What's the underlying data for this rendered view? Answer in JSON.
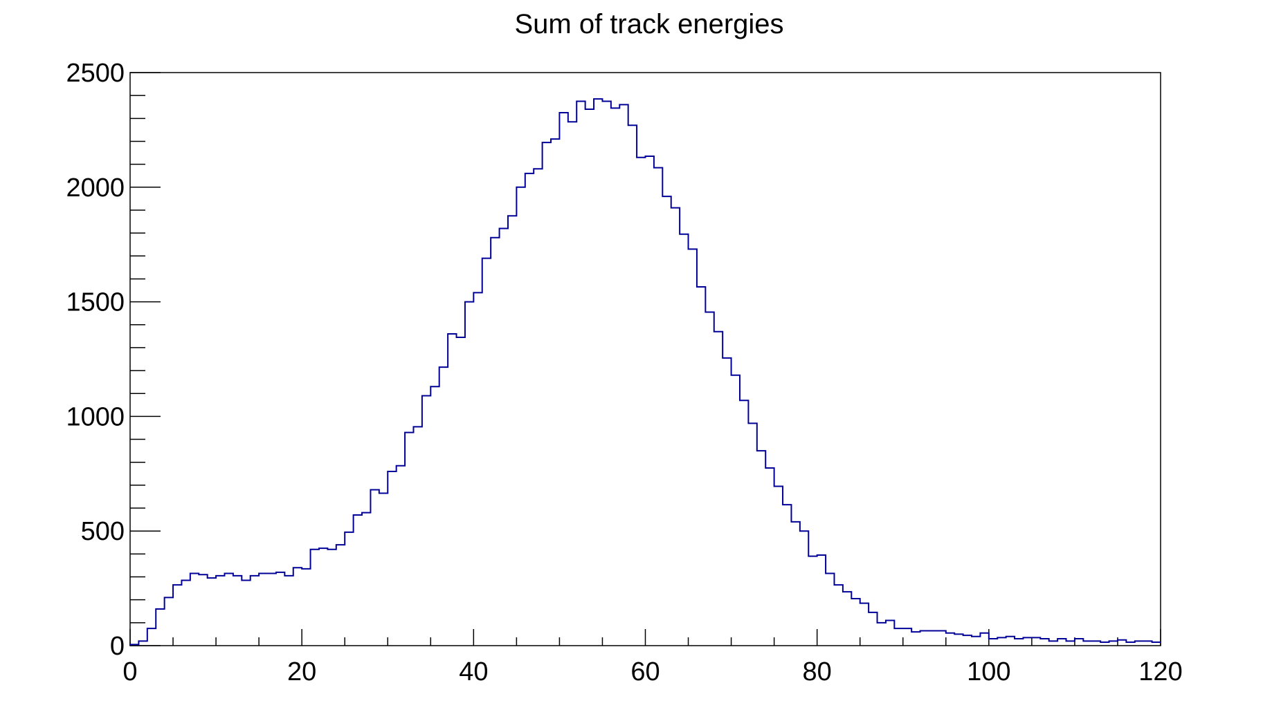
{
  "chart_data": {
    "type": "bar",
    "style": "step-histogram",
    "title": "Sum of track energies",
    "xlabel": "",
    "ylabel": "",
    "xlim": [
      0,
      120
    ],
    "ylim": [
      0,
      2500
    ],
    "xticks": [
      0,
      20,
      40,
      60,
      80,
      100,
      120
    ],
    "xtick_labels": [
      "0",
      "20",
      "40",
      "60",
      "80",
      "100",
      "120"
    ],
    "yticks": [
      0,
      500,
      1000,
      1500,
      2000,
      2500
    ],
    "ytick_labels": [
      "0",
      "500",
      "1000",
      "1500",
      "2000",
      "2500"
    ],
    "grid": false,
    "line_color": "#000099",
    "bin_width": 1,
    "x_start": 0,
    "values": [
      5,
      20,
      75,
      160,
      210,
      265,
      285,
      315,
      310,
      295,
      305,
      315,
      305,
      285,
      305,
      315,
      315,
      320,
      305,
      340,
      335,
      420,
      425,
      420,
      440,
      495,
      570,
      580,
      680,
      665,
      760,
      785,
      930,
      955,
      1090,
      1130,
      1215,
      1360,
      1345,
      1500,
      1540,
      1690,
      1780,
      1820,
      1875,
      2000,
      2060,
      2080,
      2195,
      2210,
      2325,
      2285,
      2375,
      2340,
      2385,
      2375,
      2345,
      2360,
      2270,
      2130,
      2135,
      2085,
      1960,
      1910,
      1795,
      1730,
      1565,
      1455,
      1370,
      1255,
      1180,
      1070,
      970,
      850,
      775,
      695,
      615,
      540,
      500,
      390,
      395,
      315,
      265,
      235,
      205,
      185,
      145,
      100,
      110,
      75,
      75,
      60,
      65,
      65,
      65,
      55,
      50,
      45,
      40,
      55,
      30,
      35,
      40,
      30,
      35,
      35,
      30,
      20,
      30,
      20,
      30,
      20,
      20,
      15,
      20,
      25,
      15,
      20,
      20,
      15
    ]
  }
}
